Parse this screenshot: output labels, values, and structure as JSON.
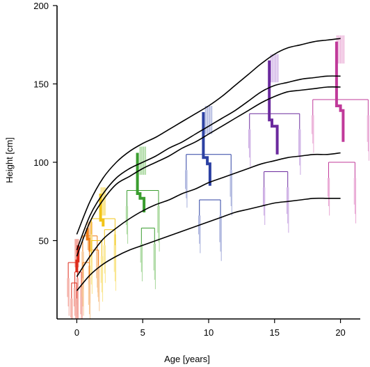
{
  "chart_data": {
    "type": "line",
    "title": "",
    "xlabel": "Age [years]",
    "ylabel": "Height [cm]",
    "xlim": [
      -1.5,
      21.5
    ],
    "ylim": [
      0,
      200
    ],
    "xticks": [
      0,
      5,
      10,
      15,
      20
    ],
    "yticks": [
      50,
      100,
      150,
      200
    ],
    "tick_color": "#000000",
    "grid": false,
    "legend": "none",
    "series": [
      {
        "x": [
          0,
          1,
          2,
          3,
          4,
          5,
          6,
          7,
          8,
          9,
          10,
          11,
          12,
          13,
          14,
          15,
          16,
          17,
          18,
          19,
          20
        ],
        "values": [
          54,
          75,
          90,
          100,
          107,
          112,
          116,
          121,
          126,
          131,
          136,
          142,
          149,
          156,
          163,
          169,
          173,
          175,
          177,
          178,
          179
        ],
        "color": "#000000"
      },
      {
        "x": [
          0,
          1,
          2,
          3,
          4,
          5,
          6,
          7,
          8,
          9,
          10,
          11,
          12,
          13,
          14,
          15,
          16,
          17,
          18,
          19,
          20
        ],
        "values": [
          44,
          66,
          80,
          90,
          96,
          100,
          104,
          109,
          113,
          118,
          123,
          128,
          133,
          139,
          145,
          149,
          151,
          153,
          154,
          155,
          155
        ],
        "color": "#000000"
      },
      {
        "x": [
          0,
          1,
          2,
          3,
          4,
          5,
          6,
          7,
          8,
          9,
          10,
          11,
          12,
          13,
          14,
          15,
          16,
          17,
          18,
          19,
          20
        ],
        "values": [
          40,
          62,
          76,
          86,
          91,
          96,
          100,
          104,
          109,
          113,
          118,
          123,
          128,
          133,
          138,
          142,
          145,
          146,
          147,
          148,
          148
        ],
        "color": "#000000"
      },
      {
        "x": [
          0,
          1,
          2,
          3,
          4,
          5,
          6,
          7,
          8,
          9,
          10,
          11,
          12,
          13,
          14,
          15,
          16,
          17,
          18,
          19,
          20
        ],
        "values": [
          27,
          40,
          51,
          58,
          64,
          69,
          73,
          76,
          80,
          83,
          87,
          90,
          93,
          96,
          99,
          101,
          103,
          104,
          105,
          105,
          106
        ],
        "color": "#000000"
      },
      {
        "x": [
          0,
          1,
          2,
          3,
          4,
          5,
          6,
          7,
          8,
          9,
          10,
          11,
          12,
          13,
          14,
          15,
          16,
          17,
          18,
          19,
          20
        ],
        "values": [
          18,
          28,
          35,
          40,
          44,
          47,
          50,
          53,
          56,
          59,
          62,
          65,
          68,
          70,
          72,
          74,
          75,
          76,
          77,
          77,
          77
        ],
        "color": "#000000"
      }
    ],
    "dendrograms": [
      {
        "age": 0,
        "color": "#dd2a1a",
        "light": "#f3a79e",
        "top": 47,
        "spread": 0.55,
        "splits": [
          {
            "dx": -0.3,
            "h": 36,
            "w": 0.35
          },
          {
            "dx": 0.1,
            "h": 30,
            "w": 0.25
          },
          {
            "dx": -0.2,
            "h": 23,
            "w": 0.2
          }
        ],
        "path": [
          [
            0.1,
            47
          ],
          [
            0.1,
            37
          ],
          [
            0,
            37
          ],
          [
            0,
            30
          ]
        ]
      },
      {
        "age": 1,
        "color": "#ef7d17",
        "light": "#f8c592",
        "top": 58,
        "spread": 0.7,
        "splits": [
          {
            "dx": 0,
            "h": 53,
            "w": 0.55
          },
          {
            "dx": 0.3,
            "h": 44,
            "w": 0.35
          },
          {
            "dx": -0.3,
            "h": 36,
            "w": 0.25
          }
        ],
        "path": [
          [
            0.8,
            58
          ],
          [
            0.8,
            51
          ],
          [
            1.0,
            51
          ],
          [
            1.0,
            43
          ]
        ]
      },
      {
        "age": 2,
        "color": "#f2c416",
        "light": "#f9e58c",
        "top": 80,
        "spread": 0.7,
        "splits": [
          {
            "dx": 0,
            "h": 64,
            "w": 0.9
          },
          {
            "dx": 0.5,
            "h": 57,
            "w": 0.4
          },
          {
            "dx": -0.5,
            "h": 50,
            "w": 0.4
          }
        ],
        "path": [
          [
            1.8,
            80
          ],
          [
            1.8,
            63
          ],
          [
            2.0,
            63
          ],
          [
            2.0,
            59
          ]
        ]
      },
      {
        "age": 5,
        "color": "#3a9d2f",
        "light": "#a6d79b",
        "top": 106,
        "spread": 0.9,
        "splits": [
          {
            "dx": 0,
            "h": 82,
            "w": 1.2
          },
          {
            "dx": 0.4,
            "h": 58,
            "w": 0.5
          }
        ],
        "path": [
          [
            4.6,
            106
          ],
          [
            4.6,
            80
          ],
          [
            4.8,
            80
          ],
          [
            4.8,
            77
          ],
          [
            5.1,
            77
          ],
          [
            5.1,
            68
          ]
        ]
      },
      {
        "age": 10,
        "color": "#2c41a3",
        "light": "#a5aedb",
        "top": 132,
        "spread": 1.0,
        "splits": [
          {
            "dx": 0,
            "h": 105,
            "w": 1.7
          },
          {
            "dx": 0.1,
            "h": 76,
            "w": 0.8
          }
        ],
        "path": [
          [
            9.6,
            132
          ],
          [
            9.6,
            103
          ],
          [
            9.9,
            103
          ],
          [
            9.9,
            99
          ],
          [
            10.1,
            99
          ],
          [
            10.1,
            85
          ]
        ]
      },
      {
        "age": 15,
        "color": "#6b2a9e",
        "light": "#c9a8e2",
        "top": 165,
        "spread": 1.1,
        "splits": [
          {
            "dx": 0,
            "h": 131,
            "w": 1.9
          },
          {
            "dx": 0.1,
            "h": 94,
            "w": 0.9
          }
        ],
        "path": [
          [
            14.6,
            165
          ],
          [
            14.6,
            127
          ],
          [
            14.8,
            127
          ],
          [
            14.8,
            123
          ],
          [
            15.2,
            123
          ],
          [
            15.2,
            105
          ]
        ]
      },
      {
        "age": 20,
        "color": "#c03a9a",
        "light": "#e9a8d4",
        "top": 177,
        "spread": 1.1,
        "splits": [
          {
            "dx": 0,
            "h": 140,
            "w": 2.1
          },
          {
            "dx": 0.1,
            "h": 100,
            "w": 1.0
          }
        ],
        "path": [
          [
            19.7,
            177
          ],
          [
            19.7,
            136
          ],
          [
            20.0,
            136
          ],
          [
            20.0,
            133
          ],
          [
            20.2,
            133
          ],
          [
            20.2,
            113
          ]
        ]
      }
    ]
  }
}
